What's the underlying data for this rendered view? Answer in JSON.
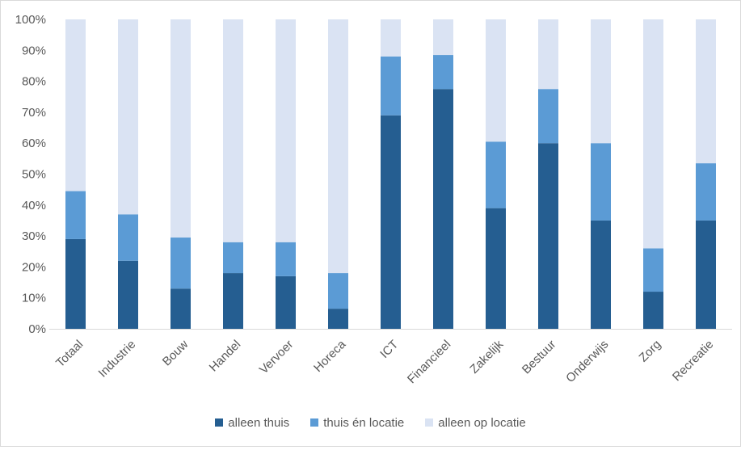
{
  "chart_data": {
    "type": "bar",
    "stacked": true,
    "categories": [
      "Totaal",
      "Industrie",
      "Bouw",
      "Handel",
      "Vervoer",
      "Horeca",
      "ICT",
      "Financieel",
      "Zakelijk",
      "Bestuur",
      "Onderwijs",
      "Zorg",
      "Recreatie"
    ],
    "series": [
      {
        "name": "alleen thuis",
        "color": "#255e91",
        "values": [
          29,
          22,
          13,
          18,
          17,
          6.5,
          69,
          77.5,
          39,
          60,
          35,
          12,
          35
        ]
      },
      {
        "name": "thuis én locatie",
        "color": "#5b9bd5",
        "values": [
          15.5,
          15,
          16.5,
          10,
          11,
          11.5,
          19,
          11,
          21.5,
          17.5,
          25,
          14,
          18.5
        ]
      },
      {
        "name": "alleen op locatie",
        "color": "#dae3f3",
        "values": [
          55.5,
          63,
          70.5,
          72,
          72,
          82,
          12,
          11.5,
          39.5,
          22.5,
          40,
          74,
          46.5
        ]
      }
    ],
    "y_ticks": [
      "0%",
      "10%",
      "20%",
      "30%",
      "40%",
      "50%",
      "60%",
      "70%",
      "80%",
      "90%",
      "100%"
    ],
    "ylim": [
      0,
      100
    ],
    "grid": false,
    "legend_position": "bottom"
  }
}
